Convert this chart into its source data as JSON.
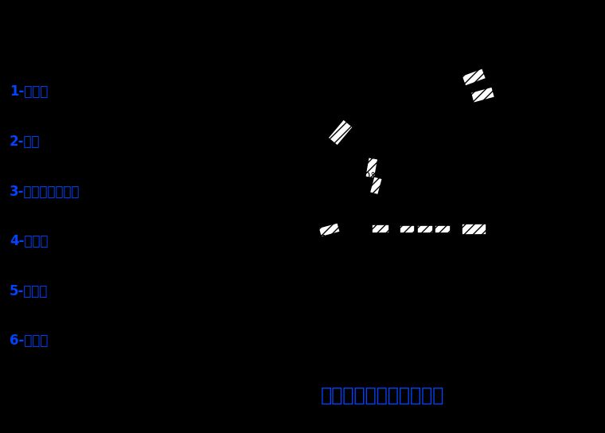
{
  "background_color": "#000000",
  "diagram_bg": "#ffffff",
  "title": "导流结构物综合布置示例",
  "title_color": "#0044ff",
  "title_fontsize": 17,
  "legend_items": [
    "1-拦水块",
    "2-锁坝",
    "3-挑水块（丁坡）",
    "4-顺水块",
    "5-导堵坠",
    "6-潜水堆"
  ],
  "legend_color": "#0044ff",
  "legend_fontsize": 12,
  "lw": 1.8
}
